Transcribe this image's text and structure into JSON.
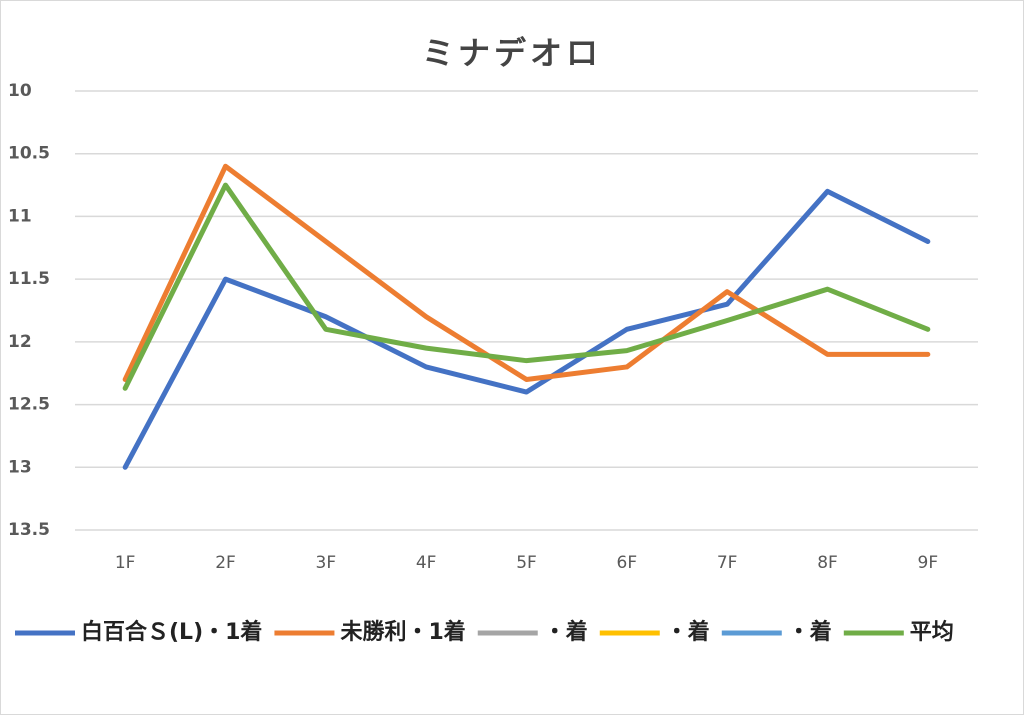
{
  "chart_data": {
    "type": "line",
    "title": "ミナデオロ",
    "categories": [
      "1F",
      "2F",
      "3F",
      "4F",
      "5F",
      "6F",
      "7F",
      "8F",
      "9F"
    ],
    "series": [
      {
        "name": "白百合Ｓ(L)・1着",
        "color": "#4472c4",
        "values": [
          13.0,
          11.5,
          11.8,
          12.2,
          12.4,
          11.9,
          11.7,
          10.8,
          11.2
        ]
      },
      {
        "name": "未勝利・1着",
        "color": "#ed7d31",
        "values": [
          12.3,
          10.6,
          11.2,
          11.8,
          12.3,
          12.2,
          11.6,
          12.1,
          12.1
        ]
      },
      {
        "name": "・着",
        "color": "#a5a5a5",
        "values": [
          null,
          null,
          null,
          null,
          null,
          null,
          null,
          null,
          null
        ]
      },
      {
        "name": "・着",
        "color": "#ffc000",
        "values": [
          null,
          null,
          null,
          null,
          null,
          null,
          null,
          null,
          null
        ]
      },
      {
        "name": "・着",
        "color": "#5b9bd5",
        "values": [
          null,
          null,
          null,
          null,
          null,
          null,
          null,
          null,
          null
        ]
      },
      {
        "name": "平均",
        "color": "#70ad47",
        "values": [
          12.37,
          10.75,
          11.9,
          12.05,
          12.15,
          12.07,
          11.83,
          11.58,
          11.9
        ]
      }
    ],
    "ylim": [
      10,
      13.5
    ],
    "y_inverted": true,
    "yticks": [
      10,
      10.5,
      11,
      11.5,
      12,
      12.5,
      13,
      13.5
    ],
    "grid": true,
    "legend": "bottom"
  }
}
